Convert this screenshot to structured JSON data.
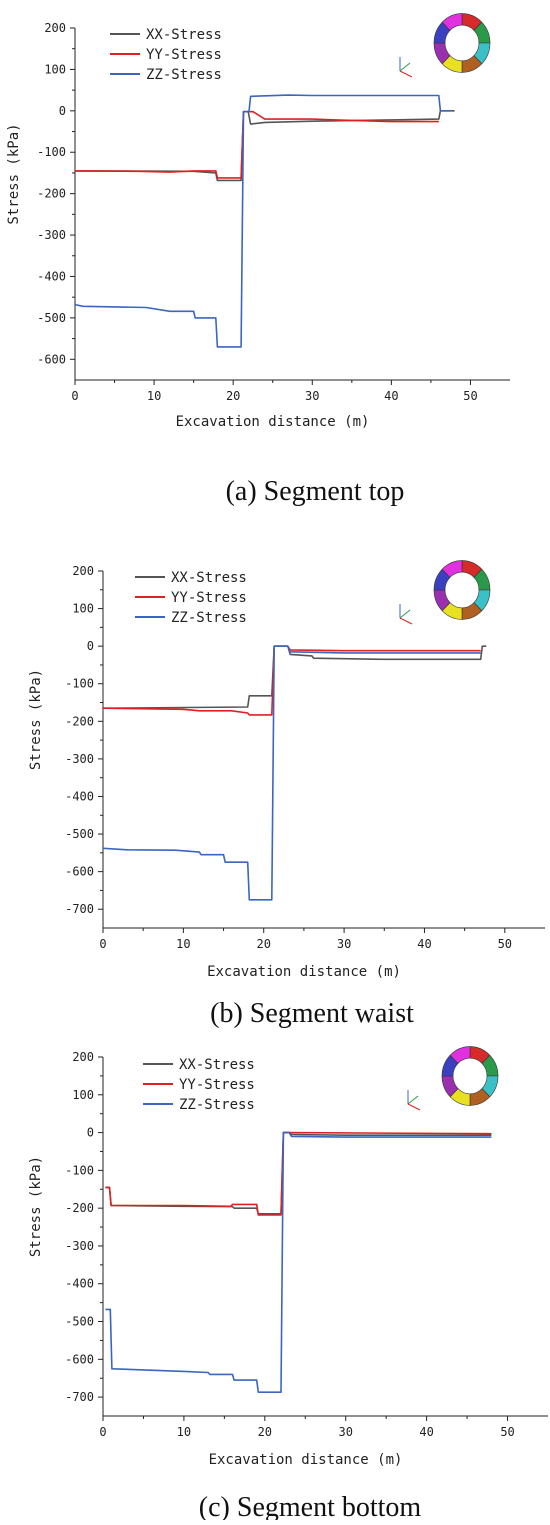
{
  "colors": {
    "xx": "#555555",
    "yy": "#e02020",
    "zz": "#3a66c0"
  },
  "chart_data": [
    {
      "type": "line",
      "caption": "(a) Segment top",
      "xlabel": "Excavation distance (m)",
      "ylabel": "Stress (kPa)",
      "xlim": [
        0,
        55
      ],
      "ylim": [
        -650,
        200
      ],
      "xticks": [
        0,
        10,
        20,
        30,
        40,
        50
      ],
      "yticks": [
        200,
        100,
        0,
        -100,
        -200,
        -300,
        -400,
        -500,
        -600
      ],
      "legend": "top-left",
      "grid": false,
      "series": [
        {
          "name": "XX-Stress",
          "color": "#555555",
          "points": [
            [
              0,
              -145
            ],
            [
              15,
              -146
            ],
            [
              17.8,
              -150
            ],
            [
              18,
              -168
            ],
            [
              21,
              -168
            ],
            [
              21.3,
              -2
            ],
            [
              21.9,
              -2
            ],
            [
              22.2,
              -32
            ],
            [
              24,
              -28
            ],
            [
              30,
              -25
            ],
            [
              40,
              -22
            ],
            [
              46,
              -20
            ],
            [
              46.2,
              0
            ],
            [
              48,
              0
            ]
          ]
        },
        {
          "name": "YY-Stress",
          "color": "#e02020",
          "points": [
            [
              0,
              -145
            ],
            [
              8,
              -146
            ],
            [
              12,
              -148
            ],
            [
              15,
              -145
            ],
            [
              17.8,
              -145
            ],
            [
              18,
              -162
            ],
            [
              21,
              -162
            ],
            [
              21.3,
              -2
            ],
            [
              22.5,
              -2
            ],
            [
              24,
              -20
            ],
            [
              30,
              -20
            ],
            [
              33,
              -22
            ],
            [
              40,
              -26
            ],
            [
              46,
              -26
            ]
          ]
        },
        {
          "name": "ZZ-Stress",
          "color": "#3a66c0",
          "points": [
            [
              0,
              -468
            ],
            [
              1,
              -472
            ],
            [
              9,
              -475
            ],
            [
              12,
              -484
            ],
            [
              15,
              -484
            ],
            [
              15.2,
              -500
            ],
            [
              17.8,
              -500
            ],
            [
              18,
              -570
            ],
            [
              21,
              -570
            ],
            [
              21.3,
              -2
            ],
            [
              22,
              -2
            ],
            [
              22.2,
              35
            ],
            [
              27,
              38
            ],
            [
              30,
              37
            ],
            [
              46,
              37
            ],
            [
              46.2,
              0
            ],
            [
              47.5,
              0
            ]
          ]
        }
      ]
    },
    {
      "type": "line",
      "caption": "(b) Segment waist",
      "xlabel": "Excavation distance (m)",
      "ylabel": "Stress (kPa)",
      "xlim": [
        0,
        55
      ],
      "ylim": [
        -750,
        200
      ],
      "xticks": [
        0,
        10,
        20,
        30,
        40,
        50
      ],
      "yticks": [
        200,
        100,
        0,
        -100,
        -200,
        -300,
        -400,
        -500,
        -600,
        -700
      ],
      "legend": "top-left",
      "grid": false,
      "series": [
        {
          "name": "XX-Stress",
          "color": "#555555",
          "points": [
            [
              0,
              -165
            ],
            [
              18,
              -162
            ],
            [
              18.2,
              -132
            ],
            [
              21,
              -132
            ],
            [
              21.3,
              0
            ],
            [
              23,
              0
            ],
            [
              23.3,
              -22
            ],
            [
              26,
              -26
            ],
            [
              26.2,
              -32
            ],
            [
              35,
              -35
            ],
            [
              47,
              -35
            ],
            [
              47.2,
              0
            ],
            [
              47.7,
              0
            ]
          ]
        },
        {
          "name": "YY-Stress",
          "color": "#e02020",
          "points": [
            [
              0,
              -165
            ],
            [
              10,
              -168
            ],
            [
              12,
              -172
            ],
            [
              16,
              -172
            ],
            [
              18,
              -178
            ],
            [
              18.2,
              -183
            ],
            [
              21,
              -183
            ],
            [
              21.3,
              0
            ],
            [
              23,
              0
            ],
            [
              23.3,
              -10
            ],
            [
              30,
              -12
            ],
            [
              40,
              -12
            ],
            [
              47,
              -12
            ]
          ]
        },
        {
          "name": "ZZ-Stress",
          "color": "#3a66c0",
          "points": [
            [
              0,
              -538
            ],
            [
              3,
              -542
            ],
            [
              9,
              -543
            ],
            [
              12,
              -548
            ],
            [
              12.2,
              -555
            ],
            [
              15,
              -555
            ],
            [
              15.2,
              -575
            ],
            [
              18,
              -575
            ],
            [
              18.2,
              -675
            ],
            [
              21,
              -675
            ],
            [
              21.3,
              0
            ],
            [
              23,
              0
            ],
            [
              23.3,
              -15
            ],
            [
              30,
              -18
            ],
            [
              47,
              -18
            ]
          ]
        }
      ]
    },
    {
      "type": "line",
      "caption": "(c) Segment bottom",
      "xlabel": "Excavation distance (m)",
      "ylabel": "Stress (kPa)",
      "xlim": [
        0,
        55
      ],
      "ylim": [
        -750,
        200
      ],
      "xticks": [
        0,
        10,
        20,
        30,
        40,
        50
      ],
      "yticks": [
        200,
        100,
        0,
        -100,
        -200,
        -300,
        -400,
        -500,
        -600,
        -700
      ],
      "legend": "top-left",
      "grid": false,
      "series": [
        {
          "name": "XX-Stress",
          "color": "#555555",
          "points": [
            [
              0.3,
              -145
            ],
            [
              0.8,
              -145
            ],
            [
              1,
              -193
            ],
            [
              10,
              -195
            ],
            [
              16,
              -196
            ],
            [
              16.2,
              -200
            ],
            [
              19,
              -200
            ],
            [
              19.2,
              -215
            ],
            [
              22,
              -215
            ],
            [
              22.3,
              0
            ],
            [
              23,
              0
            ],
            [
              23.3,
              -5
            ],
            [
              30,
              -7
            ],
            [
              48,
              -7
            ]
          ]
        },
        {
          "name": "YY-Stress",
          "color": "#e02020",
          "points": [
            [
              0.3,
              -145
            ],
            [
              0.8,
              -145
            ],
            [
              1,
              -193
            ],
            [
              10,
              -193
            ],
            [
              15.8,
              -195
            ],
            [
              16,
              -190
            ],
            [
              19,
              -190
            ],
            [
              19.2,
              -218
            ],
            [
              22,
              -218
            ],
            [
              22.3,
              0
            ],
            [
              48,
              -3
            ]
          ]
        },
        {
          "name": "ZZ-Stress",
          "color": "#3a66c0",
          "points": [
            [
              0.3,
              -468
            ],
            [
              0.9,
              -468
            ],
            [
              1.1,
              -625
            ],
            [
              5,
              -628
            ],
            [
              10,
              -632
            ],
            [
              13,
              -635
            ],
            [
              13.2,
              -640
            ],
            [
              16,
              -640
            ],
            [
              16.2,
              -655
            ],
            [
              19,
              -655
            ],
            [
              19.2,
              -687
            ],
            [
              22,
              -687
            ],
            [
              22.3,
              0
            ],
            [
              23,
              0
            ],
            [
              23.3,
              -10
            ],
            [
              30,
              -12
            ],
            [
              48,
              -12
            ]
          ]
        }
      ]
    }
  ]
}
